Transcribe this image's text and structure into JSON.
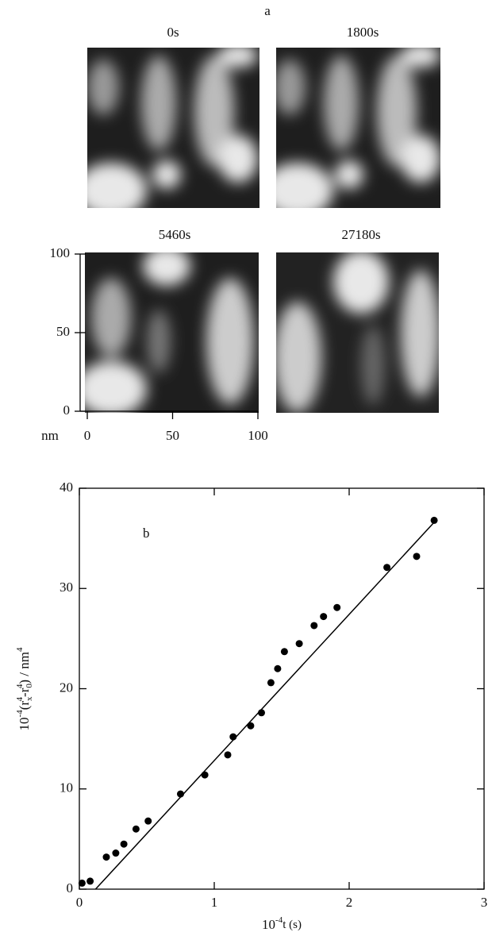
{
  "panel_a": {
    "label": "a",
    "images": [
      {
        "title": "0s"
      },
      {
        "title": "1800s"
      },
      {
        "title": "5460s"
      },
      {
        "title": "27180s"
      }
    ],
    "unit": "nm",
    "xticks": [
      0,
      50,
      100
    ],
    "yticks": [
      0,
      50,
      100
    ],
    "lim": [
      0,
      100
    ]
  },
  "chart_data": {
    "type": "scatter",
    "label": "b",
    "x": [
      0.02,
      0.08,
      0.2,
      0.27,
      0.33,
      0.42,
      0.51,
      0.75,
      0.93,
      1.1,
      1.14,
      1.27,
      1.35,
      1.42,
      1.47,
      1.52,
      1.63,
      1.74,
      1.81,
      1.91,
      2.28,
      2.5,
      2.63
    ],
    "values": [
      0.6,
      0.8,
      3.2,
      3.6,
      4.5,
      6.0,
      6.8,
      9.5,
      11.4,
      13.4,
      15.2,
      16.3,
      17.6,
      20.6,
      22.0,
      23.7,
      24.5,
      26.3,
      27.2,
      28.1,
      32.1,
      33.2,
      36.8
    ],
    "fit": {
      "x": [
        0.12,
        2.63
      ],
      "y": [
        0,
        36.6
      ]
    },
    "color": "#000000",
    "xlim": [
      0,
      3
    ],
    "ylim": [
      0,
      40
    ],
    "xticks": [
      0,
      1,
      2,
      3
    ],
    "yticks": [
      0,
      10,
      20,
      30,
      40
    ],
    "xlabel": [
      "10",
      "-4",
      "t (s)"
    ],
    "ylabel": [
      "10",
      "-4",
      "(r",
      "x",
      "4",
      "-r",
      "0",
      "4",
      ") / nm",
      "4"
    ]
  }
}
